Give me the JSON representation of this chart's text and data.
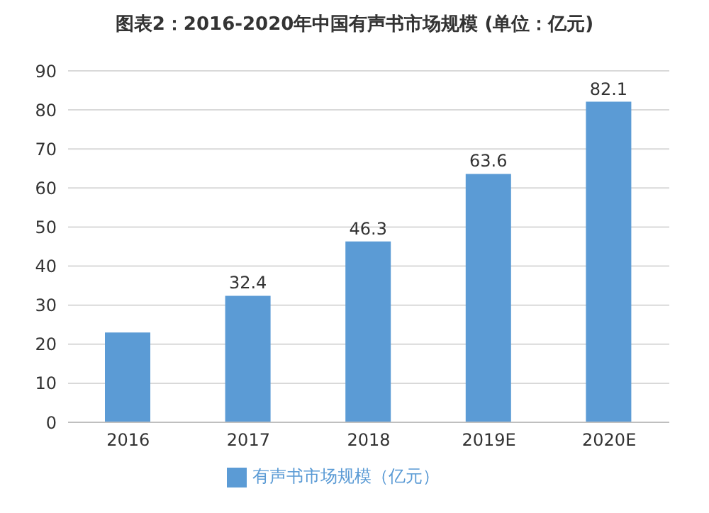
{
  "chart_data": {
    "type": "bar",
    "title": "图表2：2016-2020年中国有声书市场规模 (单位：亿元)",
    "categories": [
      "2016",
      "2017",
      "2018",
      "2019E",
      "2020E"
    ],
    "series": [
      {
        "name": "有声书市场规模（亿元）",
        "color": "#5b9bd5",
        "values": [
          23,
          32.4,
          46.3,
          63.6,
          82.1
        ],
        "value_labels": [
          null,
          "32.4",
          "46.3",
          "63.6",
          "82.1"
        ]
      }
    ],
    "ylim": [
      0,
      90
    ],
    "yticks": [
      0,
      10,
      20,
      30,
      40,
      50,
      60,
      70,
      80,
      90
    ],
    "grid": "y",
    "legend": "bottom"
  }
}
